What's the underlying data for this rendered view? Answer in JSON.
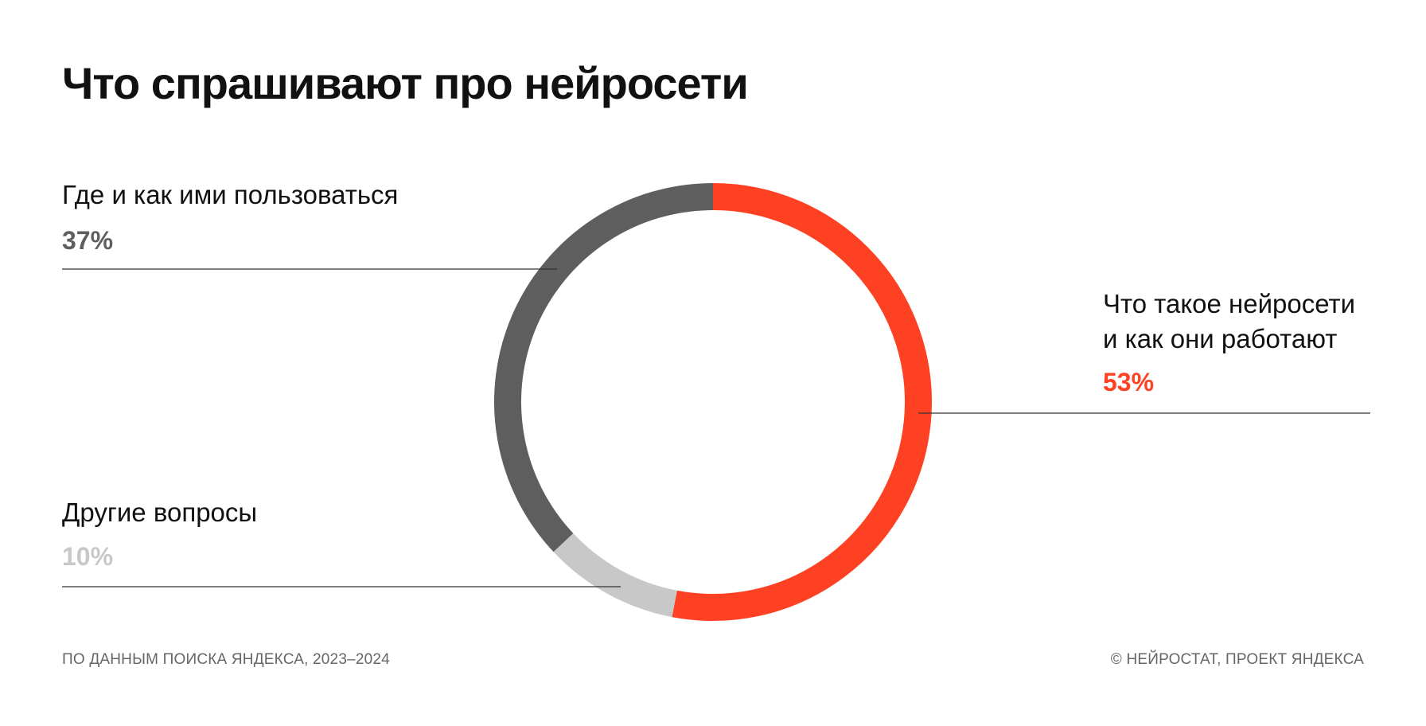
{
  "title": "Что спрашивают про нейросети",
  "footer": {
    "source": "ПО ДАННЫМ ПОИСКА ЯНДЕКСА, 2023–2024",
    "copyright": "© НЕЙРОСТАТ, ПРОЕКТ ЯНДЕКСА"
  },
  "chart_data": {
    "type": "pie",
    "variant": "donut",
    "title": "Что спрашивают про нейросети",
    "slices": [
      {
        "name": "Что такое нейросети и как они работают",
        "lines": [
          "Что такое нейросети",
          "и как они работают"
        ],
        "value": 53,
        "label": "53%",
        "color": "#FF4123"
      },
      {
        "name": "Другие вопросы",
        "lines": [
          "Другие вопросы"
        ],
        "value": 10,
        "label": "10%",
        "color": "#C8C8C8"
      },
      {
        "name": "Где и как ими пользоваться",
        "lines": [
          "Где и как ими пользоваться"
        ],
        "value": 37,
        "label": "37%",
        "color": "#5E5E5E"
      }
    ],
    "start_angle_deg": 0,
    "direction": "clockwise",
    "legend": "none"
  },
  "colors": {
    "accent": "#FF4123",
    "dark_gray": "#5E5E5E",
    "light_gray": "#C8C8C8",
    "line": "#333333"
  }
}
